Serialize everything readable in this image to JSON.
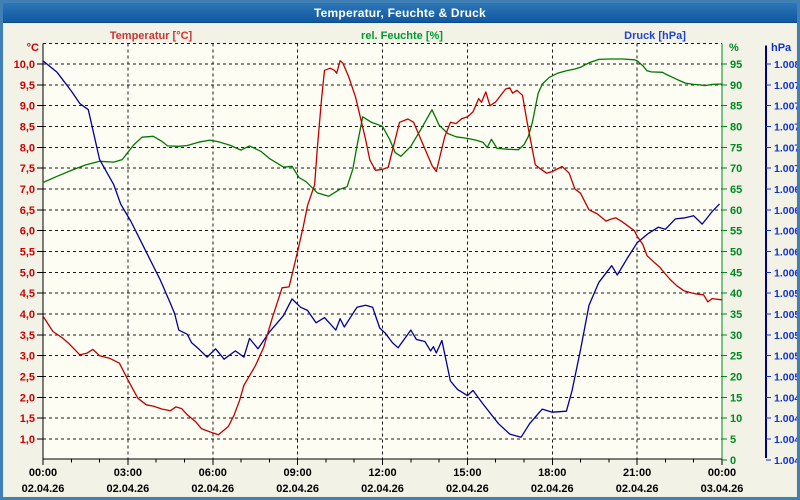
{
  "window": {
    "title": "Temperatur, Feuchte & Druck"
  },
  "colors": {
    "titlebar": "#1565a8",
    "window_border": "#4180b4",
    "content_bg": "#f2f2e6",
    "plot_bg": "#fdfdf4",
    "grid": "#1a1a1a",
    "temperature": "#c00000",
    "temperature_label": "#cc3333",
    "temperature_ticks": "#cc0000",
    "humidity": "#007700",
    "humidity_label": "#009933",
    "humidity_ticks": "#008822",
    "pressure": "#000099",
    "pressure_label": "#2244cc",
    "pressure_ticks": "#1133cc",
    "axis_black": "#000000"
  },
  "chart_data": {
    "type": "line",
    "title": "Temperatur, Feuchte & Druck",
    "grid": "dashed both axes, 3h vertical / 0.5°C horizontal",
    "legend_position": "labels above plot",
    "x_axis": {
      "range_hours": [
        0,
        24
      ],
      "major_tick_hours": 3,
      "minor_tick_hours": 1,
      "time_labels": [
        "00:00",
        "03:00",
        "06:00",
        "09:00",
        "12:00",
        "15:00",
        "18:00",
        "21:00",
        "00:00"
      ],
      "date_labels": [
        "02.04.26",
        "02.04.26",
        "02.04.26",
        "02.04.26",
        "02.04.26",
        "02.04.26",
        "02.04.26",
        "02.04.26",
        "03.04.26"
      ]
    },
    "axes": {
      "temperature": {
        "label": "Temperatur [°C]",
        "unit_header": "°C",
        "side": "left",
        "min": 1.0,
        "max": 10.0,
        "tick_step": 0.5,
        "tick_labels": [
          "10,0",
          "9,5",
          "9,0",
          "8,5",
          "8,0",
          "7,5",
          "7,0",
          "6,5",
          "6,0",
          "5,5",
          "5,0",
          "4,5",
          "4,0",
          "3,5",
          "3,0",
          "2,5",
          "2,0",
          "1,5",
          "1,0"
        ]
      },
      "humidity": {
        "label": "rel. Feuchte [%]",
        "unit_header": "%",
        "side": "right-inner",
        "min": 0,
        "max": 95,
        "tick_step": 5,
        "tick_labels": [
          "95",
          "90",
          "85",
          "80",
          "75",
          "70",
          "65",
          "60",
          "55",
          "50",
          "45",
          "40",
          "35",
          "30",
          "25",
          "20",
          "15",
          "10",
          "5",
          "0"
        ]
      },
      "pressure": {
        "label": "Druck [hPa]",
        "unit_header": "hPa",
        "side": "right-outer",
        "top_value": 1008.0,
        "bottom_value": 1004.2,
        "tick_step": 0.2,
        "tick_labels": [
          "1.008",
          "1.007",
          "1.007",
          "1.007",
          "1.007",
          "1.007",
          "1.006",
          "1.006",
          "1.006",
          "1.006",
          "1.006",
          "1.005",
          "1.005",
          "1.005",
          "1.005",
          "1.005",
          "1.004",
          "1.004",
          "1.004",
          "1.004"
        ]
      }
    },
    "series": [
      {
        "name": "Temperatur",
        "axis": "temperature",
        "unit": "°C",
        "points": [
          [
            0,
            3.95
          ],
          [
            0.35,
            3.58
          ],
          [
            0.7,
            3.42
          ],
          [
            0.9,
            3.3
          ],
          [
            1.3,
            3.02
          ],
          [
            1.55,
            3.06
          ],
          [
            1.76,
            3.15
          ],
          [
            2,
            3.0
          ],
          [
            2.35,
            2.94
          ],
          [
            2.7,
            2.82
          ],
          [
            3,
            2.42
          ],
          [
            3.35,
            1.98
          ],
          [
            3.65,
            1.82
          ],
          [
            3.9,
            1.79
          ],
          [
            4.2,
            1.72
          ],
          [
            4.5,
            1.68
          ],
          [
            4.7,
            1.77
          ],
          [
            4.9,
            1.73
          ],
          [
            5.1,
            1.58
          ],
          [
            5.4,
            1.41
          ],
          [
            5.6,
            1.25
          ],
          [
            5.9,
            1.17
          ],
          [
            6.2,
            1.1
          ],
          [
            6.55,
            1.3
          ],
          [
            6.75,
            1.57
          ],
          [
            6.95,
            1.93
          ],
          [
            7.1,
            2.29
          ],
          [
            7.5,
            2.75
          ],
          [
            7.8,
            3.2
          ],
          [
            8.1,
            3.9
          ],
          [
            8.45,
            4.63
          ],
          [
            8.7,
            4.65
          ],
          [
            9,
            5.5
          ],
          [
            9.2,
            6.1
          ],
          [
            9.35,
            6.6
          ],
          [
            9.6,
            7.1
          ],
          [
            9.7,
            8.0
          ],
          [
            9.85,
            9.2
          ],
          [
            9.95,
            9.85
          ],
          [
            10.15,
            9.9
          ],
          [
            10.3,
            9.85
          ],
          [
            10.38,
            9.78
          ],
          [
            10.5,
            10.08
          ],
          [
            10.6,
            10.02
          ],
          [
            10.8,
            9.7
          ],
          [
            11.05,
            9.2
          ],
          [
            11.4,
            8.2
          ],
          [
            11.55,
            7.7
          ],
          [
            11.75,
            7.45
          ],
          [
            12,
            7.47
          ],
          [
            12.2,
            7.52
          ],
          [
            12.6,
            8.6
          ],
          [
            12.9,
            8.68
          ],
          [
            13.1,
            8.6
          ],
          [
            13.35,
            8.2
          ],
          [
            13.76,
            7.55
          ],
          [
            13.9,
            7.42
          ],
          [
            14.2,
            8.25
          ],
          [
            14.4,
            8.6
          ],
          [
            14.6,
            8.57
          ],
          [
            14.8,
            8.69
          ],
          [
            15,
            8.73
          ],
          [
            15.2,
            8.85
          ],
          [
            15.4,
            9.17
          ],
          [
            15.5,
            9.08
          ],
          [
            15.65,
            9.33
          ],
          [
            15.8,
            9.0
          ],
          [
            16,
            9.09
          ],
          [
            16.35,
            9.4
          ],
          [
            16.5,
            9.43
          ],
          [
            16.6,
            9.3
          ],
          [
            16.75,
            9.37
          ],
          [
            16.95,
            9.25
          ],
          [
            17.1,
            8.65
          ],
          [
            17.3,
            7.94
          ],
          [
            17.4,
            7.58
          ],
          [
            17.55,
            7.5
          ],
          [
            17.8,
            7.38
          ],
          [
            18,
            7.42
          ],
          [
            18.35,
            7.54
          ],
          [
            18.6,
            7.38
          ],
          [
            18.8,
            7.0
          ],
          [
            19,
            6.9
          ],
          [
            19.3,
            6.5
          ],
          [
            19.6,
            6.4
          ],
          [
            19.9,
            6.23
          ],
          [
            20.05,
            6.27
          ],
          [
            20.25,
            6.31
          ],
          [
            20.5,
            6.2
          ],
          [
            20.9,
            6.0
          ],
          [
            21,
            5.87
          ],
          [
            21.2,
            5.67
          ],
          [
            21.35,
            5.4
          ],
          [
            21.6,
            5.24
          ],
          [
            21.8,
            5.12
          ],
          [
            22,
            4.96
          ],
          [
            22.15,
            4.84
          ],
          [
            22.4,
            4.68
          ],
          [
            22.65,
            4.56
          ],
          [
            22.9,
            4.51
          ],
          [
            23.1,
            4.48
          ],
          [
            23.35,
            4.46
          ],
          [
            23.5,
            4.29
          ],
          [
            23.65,
            4.37
          ],
          [
            24,
            4.34
          ]
        ]
      },
      {
        "name": "rel. Feuchte",
        "axis": "humidity",
        "unit": "%",
        "points": [
          [
            0,
            66.5
          ],
          [
            0.5,
            68.0
          ],
          [
            1,
            69.4
          ],
          [
            1.5,
            70.7
          ],
          [
            2,
            71.6
          ],
          [
            2.5,
            71.4
          ],
          [
            2.8,
            72.0
          ],
          [
            3.2,
            75.5
          ],
          [
            3.5,
            77.4
          ],
          [
            3.9,
            77.6
          ],
          [
            4.2,
            76.4
          ],
          [
            4.4,
            75.3
          ],
          [
            4.8,
            75.2
          ],
          [
            5.1,
            75.4
          ],
          [
            5.5,
            76.2
          ],
          [
            5.9,
            76.7
          ],
          [
            6.2,
            76.3
          ],
          [
            6.6,
            75.5
          ],
          [
            7,
            74.3
          ],
          [
            7.3,
            75.3
          ],
          [
            7.7,
            74.0
          ],
          [
            8,
            72.3
          ],
          [
            8.5,
            70.2
          ],
          [
            8.8,
            70.4
          ],
          [
            9.05,
            67.7
          ],
          [
            9.3,
            66.7
          ],
          [
            9.7,
            64.0
          ],
          [
            10.1,
            63.2
          ],
          [
            10.5,
            64.9
          ],
          [
            10.75,
            65.5
          ],
          [
            10.95,
            69.7
          ],
          [
            11.1,
            75.3
          ],
          [
            11.3,
            82.3
          ],
          [
            11.6,
            81.0
          ],
          [
            11.85,
            80.4
          ],
          [
            12,
            80.0
          ],
          [
            12.25,
            76.9
          ],
          [
            12.45,
            73.7
          ],
          [
            12.65,
            72.8
          ],
          [
            13,
            75.2
          ],
          [
            13.35,
            79.2
          ],
          [
            13.75,
            84.0
          ],
          [
            14,
            80.3
          ],
          [
            14.3,
            78.3
          ],
          [
            14.6,
            77.5
          ],
          [
            15,
            77.1
          ],
          [
            15.3,
            76.7
          ],
          [
            15.55,
            76.2
          ],
          [
            15.7,
            74.9
          ],
          [
            15.85,
            76.9
          ],
          [
            16.05,
            74.7
          ],
          [
            16.4,
            74.5
          ],
          [
            16.8,
            74.4
          ],
          [
            17,
            75.6
          ],
          [
            17.15,
            77.5
          ],
          [
            17.3,
            81.0
          ],
          [
            17.5,
            87.9
          ],
          [
            17.65,
            90.2
          ],
          [
            17.9,
            91.8
          ],
          [
            18.2,
            92.8
          ],
          [
            18.5,
            93.4
          ],
          [
            18.8,
            93.8
          ],
          [
            19,
            94.2
          ],
          [
            19.3,
            95.3
          ],
          [
            19.65,
            96.1
          ],
          [
            20,
            96.2
          ],
          [
            20.5,
            96.2
          ],
          [
            20.9,
            96.0
          ],
          [
            21,
            95.8
          ],
          [
            21.2,
            94.6
          ],
          [
            21.35,
            93.4
          ],
          [
            21.5,
            93.1
          ],
          [
            21.9,
            93.0
          ],
          [
            22,
            92.6
          ],
          [
            22.25,
            91.8
          ],
          [
            22.5,
            91.0
          ],
          [
            22.7,
            90.4
          ],
          [
            23,
            90.1
          ],
          [
            23.2,
            90.0
          ],
          [
            23.4,
            89.8
          ],
          [
            23.65,
            90.1
          ],
          [
            24,
            90.2
          ]
        ]
      },
      {
        "name": "Druck",
        "axis": "pressure",
        "unit": "hPa",
        "points": [
          [
            0,
            1008.03
          ],
          [
            0.5,
            1007.92
          ],
          [
            1,
            1007.74
          ],
          [
            1.3,
            1007.62
          ],
          [
            1.6,
            1007.56
          ],
          [
            2,
            1007.08
          ],
          [
            2.5,
            1006.84
          ],
          [
            2.75,
            1006.65
          ],
          [
            3.1,
            1006.49
          ],
          [
            3.45,
            1006.3
          ],
          [
            3.8,
            1006.11
          ],
          [
            4.15,
            1005.92
          ],
          [
            4.5,
            1005.7
          ],
          [
            4.65,
            1005.6
          ],
          [
            4.8,
            1005.44
          ],
          [
            5.1,
            1005.4
          ],
          [
            5.25,
            1005.32
          ],
          [
            5.5,
            1005.26
          ],
          [
            5.8,
            1005.18
          ],
          [
            6.1,
            1005.26
          ],
          [
            6.4,
            1005.16
          ],
          [
            6.65,
            1005.21
          ],
          [
            6.8,
            1005.24
          ],
          [
            7.1,
            1005.18
          ],
          [
            7.3,
            1005.36
          ],
          [
            7.6,
            1005.26
          ],
          [
            8,
            1005.42
          ],
          [
            8.5,
            1005.58
          ],
          [
            8.8,
            1005.74
          ],
          [
            9.1,
            1005.66
          ],
          [
            9.35,
            1005.63
          ],
          [
            9.65,
            1005.51
          ],
          [
            9.95,
            1005.56
          ],
          [
            10.35,
            1005.44
          ],
          [
            10.5,
            1005.55
          ],
          [
            10.65,
            1005.47
          ],
          [
            11.1,
            1005.66
          ],
          [
            11.4,
            1005.68
          ],
          [
            11.65,
            1005.66
          ],
          [
            11.9,
            1005.46
          ],
          [
            12.1,
            1005.41
          ],
          [
            12.35,
            1005.32
          ],
          [
            12.55,
            1005.27
          ],
          [
            13,
            1005.44
          ],
          [
            13.2,
            1005.35
          ],
          [
            13.5,
            1005.33
          ],
          [
            13.7,
            1005.24
          ],
          [
            13.8,
            1005.28
          ],
          [
            13.9,
            1005.22
          ],
          [
            14.1,
            1005.34
          ],
          [
            14.4,
            1004.95
          ],
          [
            14.65,
            1004.87
          ],
          [
            15,
            1004.81
          ],
          [
            15.2,
            1004.86
          ],
          [
            15.55,
            1004.73
          ],
          [
            16.1,
            1004.54
          ],
          [
            16.5,
            1004.44
          ],
          [
            16.9,
            1004.41
          ],
          [
            17.2,
            1004.54
          ],
          [
            17.55,
            1004.65
          ],
          [
            17.65,
            1004.68
          ],
          [
            18,
            1004.65
          ],
          [
            18.5,
            1004.66
          ],
          [
            18.7,
            1004.86
          ],
          [
            19,
            1005.25
          ],
          [
            19.3,
            1005.68
          ],
          [
            19.65,
            1005.9
          ],
          [
            20.1,
            1006.06
          ],
          [
            20.3,
            1005.97
          ],
          [
            20.65,
            1006.13
          ],
          [
            21,
            1006.28
          ],
          [
            21.4,
            1006.37
          ],
          [
            21.75,
            1006.43
          ],
          [
            22,
            1006.41
          ],
          [
            22.35,
            1006.51
          ],
          [
            22.7,
            1006.52
          ],
          [
            23,
            1006.54
          ],
          [
            23.3,
            1006.46
          ],
          [
            23.65,
            1006.58
          ],
          [
            23.9,
            1006.65
          ]
        ]
      }
    ]
  }
}
